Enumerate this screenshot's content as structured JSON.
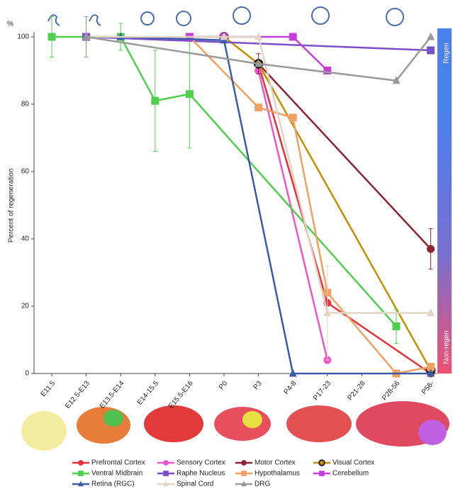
{
  "chart_data": {
    "type": "line",
    "y_unit": "%",
    "y_label": "Percent of regeneration",
    "categories": [
      "E11.5",
      "E12.5-E13",
      "E13.5-E14",
      "E14-15.5",
      "E15.5-E16",
      "P0",
      "P3",
      "P4-8",
      "P17-23",
      "P21-28",
      "P28-56",
      "P56-"
    ],
    "ylim": [
      0,
      100
    ],
    "yticks": [
      0,
      20,
      40,
      60,
      80,
      100
    ],
    "regen_label": "Regen",
    "nonregen_label": "Non-regen",
    "series": [
      {
        "name": "Prefrontal Cortex",
        "color": "#e8303a",
        "marker": "circle",
        "x": [
          "P3",
          "P17-23",
          "P56-"
        ],
        "values": [
          92,
          21,
          0
        ]
      },
      {
        "name": "Sensory Cortex",
        "color": "#f055c8",
        "marker": "circle",
        "x": [
          "P3",
          "P17-23"
        ],
        "values": [
          90,
          4
        ]
      },
      {
        "name": "Motor Cortex",
        "color": "#8b2535",
        "marker": "circle",
        "x": [
          "P3",
          "P56-"
        ],
        "values": [
          92,
          37
        ],
        "errors": [
          3,
          6
        ]
      },
      {
        "name": "Visual Cortex",
        "color": "#c09000",
        "marker": "open-circle",
        "x": [
          "P0",
          "P3",
          "P56-"
        ],
        "values": [
          100,
          92,
          1
        ]
      },
      {
        "name": "Ventral Midbrain",
        "color": "#4fcf4f",
        "marker": "square",
        "x": [
          "E11.5",
          "E12.5-E13",
          "E13.5-E14",
          "E14-15.5",
          "E15.5-E16",
          "P28-56"
        ],
        "values": [
          100,
          100,
          100,
          81,
          83,
          14
        ],
        "errors": [
          6,
          6,
          4,
          15,
          16,
          5
        ]
      },
      {
        "name": "Raphe Nucleus",
        "color": "#7a4fc8",
        "marker": "square",
        "x": [
          "E12.5-E13",
          "P56-"
        ],
        "values": [
          100,
          96
        ]
      },
      {
        "name": "Hypothalamus",
        "color": "#f0a060",
        "marker": "square",
        "x": [
          "E15.5-E16",
          "P3",
          "P4-8",
          "P17-23",
          "P28-56",
          "P56-"
        ],
        "values": [
          100,
          79,
          76,
          24,
          0,
          2
        ]
      },
      {
        "name": "Cerebellum",
        "color": "#c43fd8",
        "marker": "square",
        "x": [
          "E15.5-E16",
          "P0",
          "P4-8",
          "P17-23"
        ],
        "values": [
          100,
          100,
          100,
          90
        ]
      },
      {
        "name": "Retina (RGC)",
        "color": "#3b5ba8",
        "marker": "triangle",
        "x": [
          "E13.5-E14",
          "P0",
          "P4-8",
          "P56-"
        ],
        "values": [
          100,
          99,
          0,
          0
        ]
      },
      {
        "name": "Spinal Cord",
        "color": "#e2d4c4",
        "marker": "triangle",
        "x": [
          "E12.5-E13",
          "P0",
          "P3",
          "P17-23",
          "P56-"
        ],
        "values": [
          100,
          100,
          100,
          18,
          18
        ],
        "errors": [
          0,
          0,
          0,
          14,
          0
        ]
      },
      {
        "name": "DRG",
        "color": "#999999",
        "marker": "triangle",
        "x": [
          "E12.5-E13",
          "P3",
          "P28-56",
          "P56-"
        ],
        "values": [
          100,
          92,
          87,
          100
        ],
        "errors": [
          6,
          0,
          0,
          0
        ]
      }
    ]
  }
}
